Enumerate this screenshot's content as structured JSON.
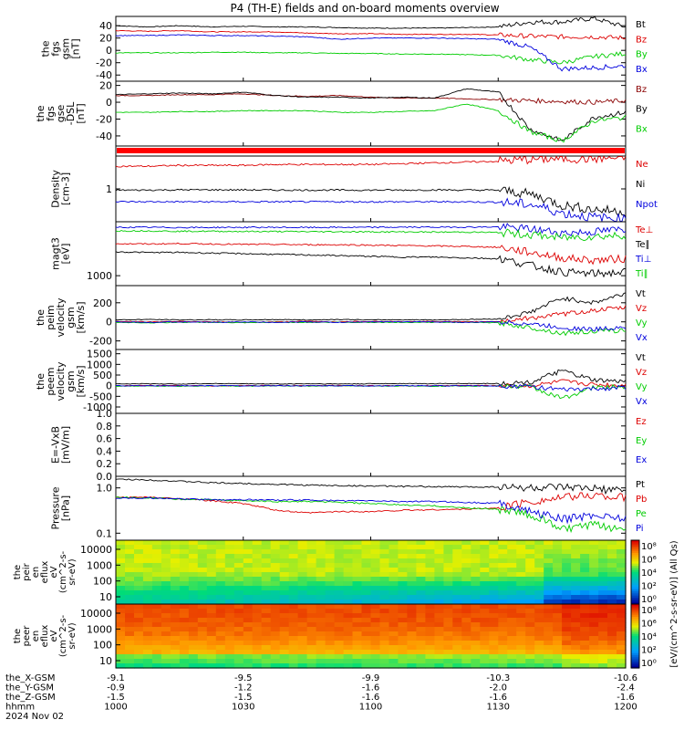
{
  "title": "P4 (TH-E) fields and on-board moments overview",
  "chart_data": {
    "type": "line",
    "x_time_ticks": [
      "1000",
      "1030",
      "1100",
      "1130",
      "1200"
    ],
    "x_range": [
      "10:00",
      "12:00"
    ],
    "panels": [
      {
        "id": "fgs-gsm",
        "ylabel": [
          "the",
          "fgs",
          "gsm",
          "[nT]"
        ],
        "ylim": [
          -50,
          55
        ],
        "scale": "linear",
        "ticks": [
          {
            "v": 40,
            "t": "40"
          },
          {
            "v": 20,
            "t": "20"
          },
          {
            "v": 0,
            "t": "0"
          },
          {
            "v": -20,
            "t": "-20"
          },
          {
            "v": -40,
            "t": "-40"
          }
        ],
        "series": [
          {
            "name": "Bt",
            "color": "#000000",
            "values": [
              40,
              38,
              40,
              38,
              39,
              38,
              38,
              37,
              36,
              36,
              36,
              37,
              38,
              46,
              46,
              52,
              38
            ]
          },
          {
            "name": "Bz",
            "color": "#dd0000",
            "values": [
              32,
              31,
              32,
              30,
              30,
              30,
              28,
              27,
              27,
              26,
              26,
              26,
              25,
              23,
              22,
              22,
              20
            ]
          },
          {
            "name": "By",
            "color": "#00cc00",
            "values": [
              -4,
              -4,
              -4,
              -3,
              -3,
              -4,
              -4,
              -5,
              -5,
              -6,
              -6,
              -7,
              -8,
              -15,
              -20,
              -10,
              -5
            ]
          },
          {
            "name": "Bx",
            "color": "#0000dd",
            "values": [
              24,
              24,
              25,
              24,
              24,
              23,
              22,
              18,
              20,
              20,
              20,
              19,
              18,
              5,
              -30,
              -28,
              -25
            ]
          }
        ]
      },
      {
        "id": "fgs-gse",
        "ylabel": [
          "the",
          "fgs",
          "gse",
          "-DSL",
          "[nT]"
        ],
        "ylim": [
          -52,
          25
        ],
        "scale": "linear",
        "ticks": [
          {
            "v": 20,
            "t": "20"
          },
          {
            "v": 0,
            "t": "0"
          },
          {
            "v": -20,
            "t": "-20"
          },
          {
            "v": -40,
            "t": "-40"
          }
        ],
        "series": [
          {
            "name": "Bz",
            "color": "#8b0000",
            "values": [
              8,
              8,
              9,
              9,
              10,
              8,
              7,
              8,
              6,
              5,
              5,
              4,
              3,
              2,
              1,
              0,
              2
            ]
          },
          {
            "name": "By",
            "color": "#000000",
            "values": [
              9,
              10,
              11,
              10,
              12,
              8,
              6,
              6,
              5,
              6,
              5,
              16,
              12,
              -32,
              -46,
              -18,
              -12
            ]
          },
          {
            "name": "Bx",
            "color": "#00cc00",
            "values": [
              -12,
              -12,
              -11,
              -11,
              -10,
              -10,
              -10,
              -12,
              -12,
              -11,
              -10,
              -2,
              -10,
              -35,
              -46,
              -22,
              -18
            ]
          }
        ]
      },
      {
        "id": "density",
        "ylabel": [
          "Density",
          "[cm-3]"
        ],
        "ylim": [
          0.25,
          4.0
        ],
        "scale": "log",
        "ticks": [
          {
            "v": 1,
            "t": "1"
          }
        ],
        "series": [
          {
            "name": "Ne",
            "color": "#dd0000",
            "values": [
              2.6,
              2.6,
              2.7,
              2.7,
              2.7,
              2.8,
              2.8,
              2.8,
              2.8,
              2.9,
              3.0,
              3.1,
              3.2,
              3.5,
              3.6,
              3.6,
              3.7
            ]
          },
          {
            "name": "Ni",
            "color": "#000000",
            "values": [
              0.95,
              0.95,
              0.96,
              0.96,
              0.96,
              0.95,
              0.95,
              0.95,
              0.95,
              0.95,
              0.96,
              0.95,
              0.95,
              0.8,
              0.5,
              0.42,
              0.38
            ]
          },
          {
            "name": "Npot",
            "color": "#0000dd",
            "values": [
              0.58,
              0.58,
              0.58,
              0.58,
              0.58,
              0.58,
              0.58,
              0.58,
              0.58,
              0.58,
              0.58,
              0.58,
              0.57,
              0.52,
              0.36,
              0.3,
              0.28
            ]
          }
        ]
      },
      {
        "id": "temp",
        "ylabel": [
          "magt3",
          "[eV]"
        ],
        "ylim": [
          600,
          16000
        ],
        "scale": "log",
        "ticks": [
          {
            "v": 1000,
            "t": "1000"
          }
        ],
        "series": [
          {
            "name": "Te⊥",
            "color": "#dd0000",
            "values": [
              5200,
              5100,
              5200,
              5100,
              5000,
              5000,
              4900,
              4900,
              4800,
              4700,
              4600,
              4500,
              4300,
              3300,
              2500,
              2200,
              2400
            ]
          },
          {
            "name": "Te∥",
            "color": "#000000",
            "values": [
              3400,
              3300,
              3300,
              3200,
              3100,
              3000,
              2900,
              2800,
              2700,
              2600,
              2600,
              2500,
              2400,
              1700,
              1200,
              1100,
              1200
            ]
          },
          {
            "name": "Ti⊥",
            "color": "#0000dd",
            "values": [
              12000,
              12000,
              11900,
              11900,
              12000,
              12000,
              11900,
              12000,
              12000,
              12100,
              12100,
              12200,
              12200,
              11000,
              9000,
              9500,
              11000
            ]
          },
          {
            "name": "Ti∥",
            "color": "#00cc00",
            "values": [
              10000,
              10000,
              9800,
              9800,
              9700,
              9700,
              9600,
              9600,
              9500,
              9500,
              9400,
              9400,
              9200,
              8200,
              7000,
              7500,
              8000
            ]
          }
        ]
      },
      {
        "id": "ion-velocity",
        "ylabel": [
          "the",
          "peim",
          "velocity",
          "gsm",
          "[km/s]"
        ],
        "ylim": [
          -290,
          380
        ],
        "scale": "linear",
        "ticks": [
          {
            "v": 200,
            "t": "200"
          },
          {
            "v": 0,
            "t": "0"
          },
          {
            "v": -200,
            "t": "-200"
          }
        ],
        "series": [
          {
            "name": "Vt",
            "color": "#000000",
            "values": [
              20,
              25,
              20,
              22,
              20,
              24,
              20,
              25,
              20,
              22,
              20,
              25,
              30,
              100,
              250,
              200,
              300
            ]
          },
          {
            "name": "Vz",
            "color": "#dd0000",
            "values": [
              5,
              0,
              5,
              0,
              -5,
              0,
              5,
              0,
              5,
              0,
              5,
              0,
              5,
              40,
              80,
              120,
              150
            ]
          },
          {
            "name": "Vy",
            "color": "#00cc00",
            "values": [
              -5,
              -10,
              -5,
              -5,
              -10,
              -5,
              -5,
              -5,
              -5,
              -5,
              -5,
              -5,
              -10,
              -60,
              -120,
              -100,
              -90
            ]
          },
          {
            "name": "Vx",
            "color": "#0000dd",
            "values": [
              0,
              -5,
              0,
              -5,
              0,
              -5,
              0,
              -5,
              0,
              0,
              0,
              -5,
              0,
              -20,
              -60,
              -80,
              -50
            ]
          }
        ]
      },
      {
        "id": "electron-velocity",
        "ylabel": [
          "the",
          "peem",
          "velocity",
          "gsm",
          "[km/s]"
        ],
        "ylim": [
          -1300,
          1700
        ],
        "scale": "linear",
        "ticks": [
          {
            "v": 1500,
            "t": "1500"
          },
          {
            "v": 1000,
            "t": "1000"
          },
          {
            "v": 500,
            "t": "500"
          },
          {
            "v": 0,
            "t": "0"
          },
          {
            "v": -500,
            "t": "-500"
          },
          {
            "v": -1000,
            "t": "-1000"
          }
        ],
        "series": [
          {
            "name": "Vt",
            "color": "#000000",
            "values": [
              80,
              90,
              80,
              100,
              90,
              80,
              90,
              80,
              90,
              100,
              90,
              100,
              100,
              150,
              700,
              250,
              180
            ]
          },
          {
            "name": "Vz",
            "color": "#dd0000",
            "values": [
              0,
              10,
              0,
              -10,
              0,
              10,
              0,
              10,
              0,
              -10,
              0,
              10,
              0,
              -20,
              200,
              50,
              20
            ]
          },
          {
            "name": "Vy",
            "color": "#00cc00",
            "values": [
              -20,
              -10,
              -20,
              -10,
              -20,
              -10,
              -20,
              -10,
              -20,
              -10,
              -20,
              -10,
              -20,
              -50,
              -600,
              -80,
              -60
            ]
          },
          {
            "name": "Vx",
            "color": "#0000dd",
            "values": [
              -10,
              0,
              -10,
              0,
              -10,
              0,
              -10,
              0,
              -10,
              0,
              -10,
              0,
              -10,
              -30,
              -200,
              -150,
              -80
            ]
          }
        ]
      },
      {
        "id": "efield",
        "ylabel": [
          "E=-VxB",
          "[mV/m]"
        ],
        "ylim": [
          0,
          1
        ],
        "scale": "linear",
        "ticks": [
          {
            "v": 1.0,
            "t": "1.0"
          },
          {
            "v": 0.8,
            "t": "0.8"
          },
          {
            "v": 0.6,
            "t": "0.6"
          },
          {
            "v": 0.4,
            "t": "0.4"
          },
          {
            "v": 0.2,
            "t": "0.2"
          },
          {
            "v": 0.0,
            "t": "0.0"
          }
        ],
        "series": [
          {
            "name": "Ez",
            "color": "#dd0000",
            "values": []
          },
          {
            "name": "Ey",
            "color": "#00cc00",
            "values": []
          },
          {
            "name": "Ex",
            "color": "#0000dd",
            "values": []
          }
        ]
      },
      {
        "id": "pressure",
        "ylabel": [
          "Pressure",
          "[nPa]"
        ],
        "ylim": [
          0.07,
          1.8
        ],
        "scale": "log",
        "ticks": [
          {
            "v": 1.0,
            "t": "1.0"
          },
          {
            "v": 0.1,
            "t": "0.1"
          }
        ],
        "series": [
          {
            "name": "Pt",
            "color": "#000000",
            "values": [
              1.55,
              1.5,
              1.4,
              1.3,
              1.25,
              1.2,
              1.15,
              1.12,
              1.1,
              1.08,
              1.06,
              1.05,
              1.05,
              1.0,
              1.0,
              0.95,
              0.85
            ]
          },
          {
            "name": "Pb",
            "color": "#dd0000",
            "values": [
              0.62,
              0.62,
              0.58,
              0.52,
              0.45,
              0.32,
              0.28,
              0.3,
              0.3,
              0.32,
              0.33,
              0.34,
              0.36,
              0.5,
              0.6,
              0.7,
              0.6
            ]
          },
          {
            "name": "Pe",
            "color": "#00cc00",
            "values": [
              0.62,
              0.6,
              0.56,
              0.55,
              0.52,
              0.5,
              0.5,
              0.48,
              0.45,
              0.42,
              0.4,
              0.36,
              0.34,
              0.25,
              0.12,
              0.15,
              0.12
            ]
          },
          {
            "name": "Pi",
            "color": "#0000dd",
            "values": [
              0.6,
              0.6,
              0.57,
              0.55,
              0.55,
              0.54,
              0.54,
              0.52,
              0.52,
              0.5,
              0.5,
              0.48,
              0.46,
              0.3,
              0.2,
              0.25,
              0.22
            ]
          }
        ]
      }
    ],
    "spectrograms": [
      {
        "id": "peir",
        "type": "heatmap",
        "ylabel": [
          "the",
          "peir",
          "en",
          "eflux",
          "eV",
          "(cm^2-s-",
          "sr-eV)"
        ],
        "yticks": [
          "10000",
          "1000",
          "100",
          "10"
        ]
      },
      {
        "id": "peer",
        "type": "heatmap",
        "ylabel": [
          "the",
          "peer",
          "en",
          "eflux",
          "eV",
          "(cm^2-s-",
          "sr-eV)"
        ],
        "yticks": [
          "10000",
          "1000",
          "100",
          "10"
        ]
      }
    ],
    "colorbar": {
      "label": "[eV/(cm^2-s-sr-eV)] (All Qs)",
      "upper_ticks": [
        "10⁸",
        "10⁶",
        "10⁴",
        "10²",
        "10⁰"
      ],
      "lower_ticks": [
        "10⁸",
        "10⁶",
        "10⁴",
        "10²",
        "10⁰"
      ]
    },
    "x_axis_rows": [
      {
        "label": "the_X-GSM",
        "values": [
          "-9.1",
          "-9.5",
          "-9.9",
          "-10.3",
          "-10.6"
        ]
      },
      {
        "label": "the_Y-GSM",
        "values": [
          "-0.9",
          "-1.2",
          "-1.6",
          "-2.0",
          "-2.4"
        ]
      },
      {
        "label": "the_Z-GSM",
        "values": [
          "-1.5",
          "-1.5",
          "-1.6",
          "-1.6",
          "-1.6"
        ]
      },
      {
        "label": "hhmm",
        "values": [
          "1000",
          "1030",
          "1100",
          "1130",
          "1200"
        ]
      }
    ],
    "date": "2024 Nov 02"
  }
}
